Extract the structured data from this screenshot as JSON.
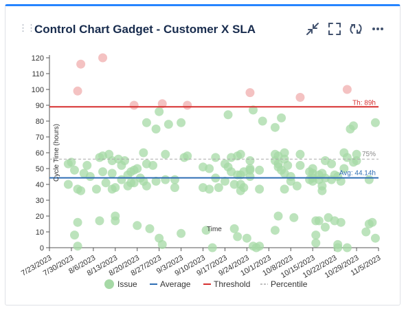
{
  "header": {
    "title": "Control Chart Gadget - Customer X SLA",
    "buttons": [
      {
        "name": "minimize-icon"
      },
      {
        "name": "fullscreen-icon"
      },
      {
        "name": "refresh-icon"
      },
      {
        "name": "more-icon"
      }
    ]
  },
  "colors": {
    "issue": "#a6d9a6",
    "outlier": "#f2b7b7",
    "average": "#2e6db4",
    "threshold": "#d62f2f",
    "percentile": "#aaaaaa",
    "accent": "#2684ff"
  },
  "chart_data": {
    "type": "scatter",
    "ylabel": "Cycle Time (hours)",
    "xlabel": "Time",
    "ylim": [
      0,
      120
    ],
    "yticks": [
      0,
      10,
      20,
      30,
      40,
      50,
      60,
      70,
      80,
      90,
      100,
      110,
      120
    ],
    "xlim": [
      "2023-07-23",
      "2023-11-05"
    ],
    "xticks": [
      "7/23/2023",
      "7/30/2023",
      "8/6/2023",
      "8/13/2023",
      "8/20/2023",
      "8/27/2023",
      "9/3/2023",
      "9/10/2023",
      "9/17/2023",
      "9/24/2023",
      "10/1/2023",
      "10/8/2023",
      "10/15/2023",
      "10/22/2023",
      "10/29/2023",
      "11/5/2023"
    ],
    "threshold": {
      "value": 89,
      "label": "Th: 89h"
    },
    "average": {
      "value": 44.14,
      "label": "Avg: 44.14h"
    },
    "percentile": {
      "value": 56,
      "label": "75%"
    },
    "legend": [
      "Issue",
      "Average",
      "Threshold",
      "Percentile"
    ],
    "issues": [
      [
        "2023-07-29",
        53
      ],
      [
        "2023-07-29",
        40
      ],
      [
        "2023-07-30",
        54
      ],
      [
        "2023-07-31",
        49
      ],
      [
        "2023-07-31",
        8
      ],
      [
        "2023-08-01",
        37
      ],
      [
        "2023-08-01",
        16
      ],
      [
        "2023-08-01",
        1
      ],
      [
        "2023-08-02",
        36
      ],
      [
        "2023-08-03",
        47
      ],
      [
        "2023-08-04",
        52
      ],
      [
        "2023-08-05",
        45
      ],
      [
        "2023-08-07",
        37
      ],
      [
        "2023-08-08",
        57
      ],
      [
        "2023-08-08",
        17
      ],
      [
        "2023-08-09",
        58
      ],
      [
        "2023-08-09",
        48
      ],
      [
        "2023-08-10",
        41
      ],
      [
        "2023-08-11",
        59
      ],
      [
        "2023-08-12",
        37
      ],
      [
        "2023-08-12",
        55
      ],
      [
        "2023-08-12",
        47
      ],
      [
        "2023-08-13",
        38
      ],
      [
        "2023-08-13",
        20
      ],
      [
        "2023-08-13",
        17
      ],
      [
        "2023-08-14",
        56
      ],
      [
        "2023-08-15",
        52
      ],
      [
        "2023-08-15",
        43
      ],
      [
        "2023-08-16",
        55
      ],
      [
        "2023-08-17",
        46
      ],
      [
        "2023-08-17",
        39
      ],
      [
        "2023-08-18",
        48
      ],
      [
        "2023-08-18",
        41
      ],
      [
        "2023-08-19",
        49
      ],
      [
        "2023-08-19",
        41
      ],
      [
        "2023-08-20",
        50
      ],
      [
        "2023-08-20",
        14
      ],
      [
        "2023-08-21",
        44
      ],
      [
        "2023-08-22",
        60
      ],
      [
        "2023-08-22",
        42
      ],
      [
        "2023-08-23",
        53
      ],
      [
        "2023-08-23",
        39
      ],
      [
        "2023-08-23",
        79
      ],
      [
        "2023-08-24",
        12
      ],
      [
        "2023-08-25",
        52
      ],
      [
        "2023-08-26",
        75
      ],
      [
        "2023-08-26",
        42
      ],
      [
        "2023-08-27",
        86
      ],
      [
        "2023-08-27",
        6
      ],
      [
        "2023-08-28",
        2
      ],
      [
        "2023-08-29",
        59
      ],
      [
        "2023-08-29",
        43
      ],
      [
        "2023-08-30",
        78
      ],
      [
        "2023-09-01",
        43
      ],
      [
        "2023-09-01",
        38
      ],
      [
        "2023-09-03",
        79
      ],
      [
        "2023-09-04",
        57
      ],
      [
        "2023-09-03",
        9
      ],
      [
        "2023-09-05",
        58
      ],
      [
        "2023-09-10",
        51
      ],
      [
        "2023-09-10",
        38
      ],
      [
        "2023-09-11",
        11
      ],
      [
        "2023-09-12",
        50
      ],
      [
        "2023-09-12",
        37
      ],
      [
        "2023-09-13",
        0
      ],
      [
        "2023-09-14",
        57
      ],
      [
        "2023-09-14",
        44
      ],
      [
        "2023-09-15",
        38
      ],
      [
        "2023-09-17",
        53
      ],
      [
        "2023-09-17",
        42
      ],
      [
        "2023-09-18",
        51
      ],
      [
        "2023-09-18",
        84
      ],
      [
        "2023-09-19",
        57
      ],
      [
        "2023-09-19",
        48
      ],
      [
        "2023-09-20",
        40
      ],
      [
        "2023-09-20",
        12
      ],
      [
        "2023-09-21",
        58
      ],
      [
        "2023-09-21",
        46
      ],
      [
        "2023-09-21",
        7
      ],
      [
        "2023-09-22",
        40
      ],
      [
        "2023-09-22",
        36
      ],
      [
        "2023-09-22",
        59
      ],
      [
        "2023-09-22",
        46
      ],
      [
        "2023-09-23",
        48
      ],
      [
        "2023-09-23",
        38
      ],
      [
        "2023-09-24",
        6
      ],
      [
        "2023-09-25",
        55
      ],
      [
        "2023-09-25",
        50
      ],
      [
        "2023-09-25",
        49
      ],
      [
        "2023-09-25",
        45
      ],
      [
        "2023-09-26",
        87
      ],
      [
        "2023-09-26",
        1
      ],
      [
        "2023-09-27",
        0
      ],
      [
        "2023-09-28",
        1
      ],
      [
        "2023-09-28",
        49
      ],
      [
        "2023-09-28",
        37
      ],
      [
        "2023-09-29",
        80
      ],
      [
        "2023-10-03",
        76
      ],
      [
        "2023-10-03",
        11
      ],
      [
        "2023-10-03",
        59
      ],
      [
        "2023-10-03",
        55
      ],
      [
        "2023-10-04",
        53
      ],
      [
        "2023-10-04",
        20
      ],
      [
        "2023-10-04",
        58
      ],
      [
        "2023-10-04",
        51
      ],
      [
        "2023-10-05",
        82
      ],
      [
        "2023-10-05",
        49
      ],
      [
        "2023-10-06",
        60
      ],
      [
        "2023-10-06",
        56
      ],
      [
        "2023-10-06",
        47
      ],
      [
        "2023-10-06",
        37
      ],
      [
        "2023-10-07",
        52
      ],
      [
        "2023-10-08",
        42
      ],
      [
        "2023-10-08",
        45
      ],
      [
        "2023-10-09",
        19
      ],
      [
        "2023-10-10",
        39
      ],
      [
        "2023-10-11",
        52
      ],
      [
        "2023-10-11",
        59
      ],
      [
        "2023-10-14",
        43
      ],
      [
        "2023-10-14",
        48
      ],
      [
        "2023-10-15",
        47
      ],
      [
        "2023-10-15",
        50
      ],
      [
        "2023-10-15",
        44
      ],
      [
        "2023-10-15",
        42
      ],
      [
        "2023-10-16",
        8
      ],
      [
        "2023-10-16",
        17
      ],
      [
        "2023-10-16",
        3
      ],
      [
        "2023-10-17",
        46
      ],
      [
        "2023-10-17",
        17
      ],
      [
        "2023-10-17",
        43
      ],
      [
        "2023-10-18",
        47
      ],
      [
        "2023-10-18",
        39
      ],
      [
        "2023-10-18",
        36
      ],
      [
        "2023-10-19",
        13
      ],
      [
        "2023-10-19",
        55
      ],
      [
        "2023-10-19",
        44
      ],
      [
        "2023-10-20",
        19
      ],
      [
        "2023-10-21",
        53
      ],
      [
        "2023-10-21",
        43
      ],
      [
        "2023-10-22",
        46
      ],
      [
        "2023-10-22",
        17
      ],
      [
        "2023-10-23",
        2
      ],
      [
        "2023-10-23",
        0
      ],
      [
        "2023-10-23",
        45
      ],
      [
        "2023-10-24",
        42
      ],
      [
        "2023-10-24",
        16
      ],
      [
        "2023-10-25",
        60
      ],
      [
        "2023-10-25",
        50
      ],
      [
        "2023-10-26",
        57
      ],
      [
        "2023-10-26",
        0
      ],
      [
        "2023-10-27",
        75
      ],
      [
        "2023-10-28",
        77
      ],
      [
        "2023-10-28",
        54
      ],
      [
        "2023-10-29",
        59
      ],
      [
        "2023-10-29",
        55
      ],
      [
        "2023-11-01",
        10
      ],
      [
        "2023-11-02",
        43
      ],
      [
        "2023-11-02",
        15
      ],
      [
        "2023-11-03",
        16
      ],
      [
        "2023-11-04",
        6
      ],
      [
        "2023-11-04",
        79
      ]
    ],
    "outliers": [
      [
        "2023-08-01",
        99
      ],
      [
        "2023-08-02",
        116
      ],
      [
        "2023-08-09",
        120
      ],
      [
        "2023-08-19",
        90
      ],
      [
        "2023-08-28",
        91
      ],
      [
        "2023-09-05",
        90
      ],
      [
        "2023-09-25",
        98
      ],
      [
        "2023-10-11",
        95
      ],
      [
        "2023-10-26",
        100
      ]
    ]
  }
}
